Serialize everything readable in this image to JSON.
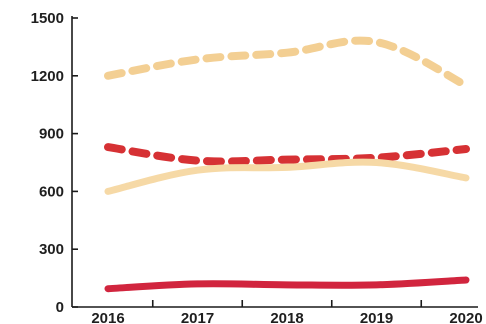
{
  "chart_data": {
    "type": "line",
    "title": "",
    "xlabel": "",
    "ylabel": "",
    "x": [
      "2016",
      "2017",
      "2018",
      "2019",
      "2020"
    ],
    "ylim": [
      0,
      1500
    ],
    "yticks": [
      0,
      300,
      600,
      900,
      1200,
      1500
    ],
    "grid": false,
    "legend": "none",
    "series": [
      {
        "values": [
          1200,
          1285,
          1320,
          1375,
          1150
        ],
        "color": "#f3cf93",
        "style": "dashed"
      },
      {
        "values": [
          830,
          760,
          765,
          775,
          820
        ],
        "color": "#d63134",
        "style": "dashed"
      },
      {
        "values": [
          600,
          710,
          725,
          750,
          670
        ],
        "color": "#f6d9a6",
        "style": "solid"
      },
      {
        "values": [
          95,
          120,
          115,
          115,
          140
        ],
        "color": "#d1253e",
        "style": "solid"
      }
    ]
  }
}
